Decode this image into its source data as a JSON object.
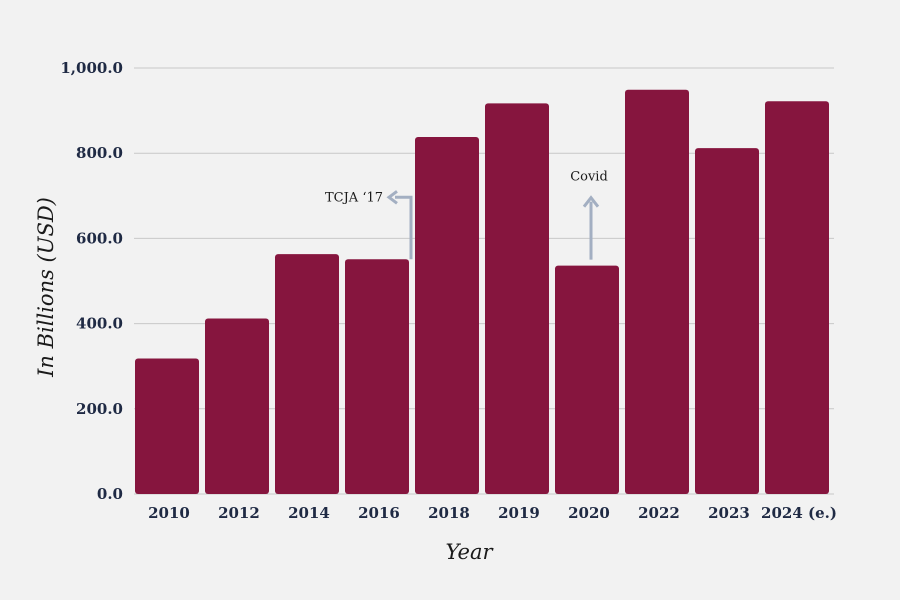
{
  "chart_data": {
    "type": "bar",
    "categories": [
      "2010",
      "2012",
      "2014",
      "2016",
      "2018",
      "2019",
      "2020",
      "2022",
      "2023",
      "2024 (e.)"
    ],
    "values": [
      318,
      412,
      563,
      551,
      838,
      917,
      536,
      949,
      812,
      922
    ],
    "title": "",
    "xlabel": "Year",
    "ylabel": "In Billions (USD)",
    "ylim": [
      0,
      1000
    ],
    "yticks": [
      0,
      200,
      400,
      600,
      800,
      1000
    ],
    "ytick_labels": [
      "0.0",
      "200.0",
      "400.0",
      "600.0",
      "800.0",
      "1,000.0"
    ],
    "grid": true,
    "legend": "none",
    "annotations": [
      {
        "text": "TCJA ‘17",
        "category": "2016",
        "arrow": "up-left"
      },
      {
        "text": "Covid",
        "category": "2020",
        "arrow": "up"
      }
    ]
  },
  "colors": {
    "bar": "#86153e",
    "grid": "#c8c8c8",
    "arrow": "#a3afc2",
    "background": "#f2f2f2"
  }
}
